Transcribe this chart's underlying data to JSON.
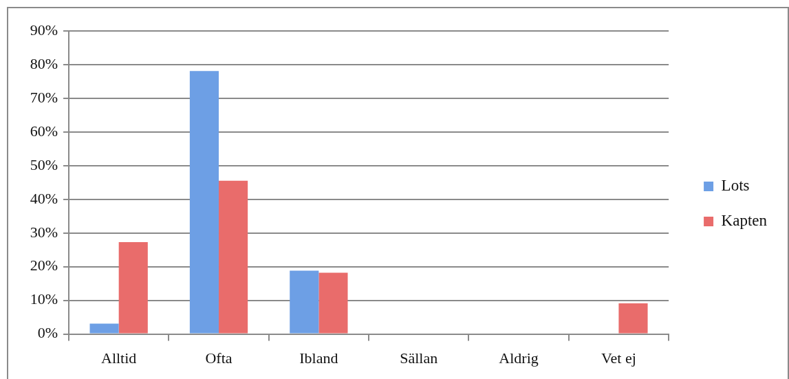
{
  "chart_data": {
    "type": "bar",
    "categories": [
      "Alltid",
      "Ofta",
      "Ibland",
      "Sällan",
      "Aldrig",
      "Vet ej"
    ],
    "series": [
      {
        "name": "Lots",
        "color": "#6d9fe5",
        "values": [
          3.1,
          78.1,
          18.8,
          0,
          0,
          0
        ]
      },
      {
        "name": "Kapten",
        "color": "#e96c6b",
        "values": [
          27.3,
          45.5,
          18.2,
          0,
          0,
          9.1
        ]
      }
    ],
    "ylim": [
      0,
      90
    ],
    "yticks": [
      {
        "value": 0,
        "label": "0%"
      },
      {
        "value": 10,
        "label": "10%"
      },
      {
        "value": 20,
        "label": "20%"
      },
      {
        "value": 30,
        "label": "30%"
      },
      {
        "value": 40,
        "label": "40%"
      },
      {
        "value": 50,
        "label": "50%"
      },
      {
        "value": 60,
        "label": "60%"
      },
      {
        "value": 70,
        "label": "70%"
      },
      {
        "value": 80,
        "label": "80%"
      },
      {
        "value": 90,
        "label": "90%"
      }
    ],
    "grid": "y",
    "legend": "right"
  }
}
